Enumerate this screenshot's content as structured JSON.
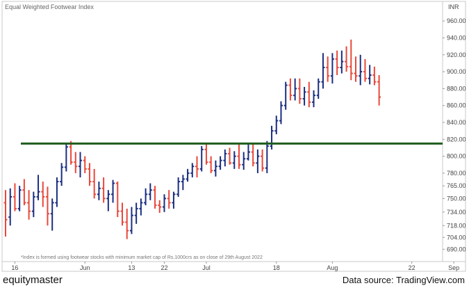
{
  "chart_data": {
    "type": "ohlc",
    "title": "Equal Weighted Footwear Index",
    "y_unit": "INR",
    "ylim": [
      682,
      970
    ],
    "y_ticks": [
      "960.00",
      "940.00",
      "920.00",
      "900.00",
      "880.00",
      "860.00",
      "840.00",
      "820.00",
      "800.00",
      "780.00",
      "765.00",
      "750.00",
      "734.00",
      "718.00",
      "704.00",
      "690.00"
    ],
    "x_ticks": [
      {
        "label": "16",
        "index": 2
      },
      {
        "label": "Jun",
        "index": 17
      },
      {
        "label": "13",
        "index": 27
      },
      {
        "label": "22",
        "index": 34
      },
      {
        "label": "Jul",
        "index": 43
      },
      {
        "label": "18",
        "index": 58
      },
      {
        "label": "Aug",
        "index": 70
      },
      {
        "label": "22",
        "index": 87
      },
      {
        "label": "Sep",
        "index": 96
      }
    ],
    "horizontal_line": {
      "value": 815,
      "color": "#1f5c1f"
    },
    "up_color": "#1a2e80",
    "down_color": "#e8483a",
    "note": "*Index is formed using footwear stocks with minimum market cap of Rs.1000crs as on close of 29th August 2022",
    "bars": [
      {
        "o": 745,
        "h": 760,
        "l": 705,
        "c": 725
      },
      {
        "o": 728,
        "h": 762,
        "l": 718,
        "c": 752
      },
      {
        "o": 752,
        "h": 768,
        "l": 735,
        "c": 738
      },
      {
        "o": 738,
        "h": 765,
        "l": 735,
        "c": 760
      },
      {
        "o": 760,
        "h": 773,
        "l": 742,
        "c": 745
      },
      {
        "o": 745,
        "h": 760,
        "l": 725,
        "c": 735
      },
      {
        "o": 735,
        "h": 758,
        "l": 728,
        "c": 752
      },
      {
        "o": 752,
        "h": 778,
        "l": 748,
        "c": 758
      },
      {
        "o": 758,
        "h": 770,
        "l": 740,
        "c": 752
      },
      {
        "o": 752,
        "h": 764,
        "l": 718,
        "c": 732
      },
      {
        "o": 732,
        "h": 750,
        "l": 712,
        "c": 745
      },
      {
        "o": 745,
        "h": 775,
        "l": 740,
        "c": 770
      },
      {
        "o": 770,
        "h": 792,
        "l": 765,
        "c": 787
      },
      {
        "o": 787,
        "h": 816,
        "l": 782,
        "c": 811
      },
      {
        "o": 811,
        "h": 818,
        "l": 790,
        "c": 793
      },
      {
        "o": 793,
        "h": 805,
        "l": 780,
        "c": 788
      },
      {
        "o": 788,
        "h": 805,
        "l": 775,
        "c": 795
      },
      {
        "o": 795,
        "h": 800,
        "l": 780,
        "c": 785
      },
      {
        "o": 785,
        "h": 792,
        "l": 765,
        "c": 770
      },
      {
        "o": 770,
        "h": 785,
        "l": 750,
        "c": 755
      },
      {
        "o": 755,
        "h": 770,
        "l": 748,
        "c": 762
      },
      {
        "o": 762,
        "h": 775,
        "l": 745,
        "c": 750
      },
      {
        "o": 750,
        "h": 760,
        "l": 735,
        "c": 755
      },
      {
        "o": 755,
        "h": 772,
        "l": 745,
        "c": 768
      },
      {
        "o": 768,
        "h": 770,
        "l": 728,
        "c": 735
      },
      {
        "o": 735,
        "h": 745,
        "l": 718,
        "c": 722
      },
      {
        "o": 722,
        "h": 738,
        "l": 702,
        "c": 712
      },
      {
        "o": 712,
        "h": 740,
        "l": 708,
        "c": 730
      },
      {
        "o": 730,
        "h": 745,
        "l": 720,
        "c": 738
      },
      {
        "o": 738,
        "h": 750,
        "l": 730,
        "c": 745
      },
      {
        "o": 745,
        "h": 762,
        "l": 742,
        "c": 755
      },
      {
        "o": 755,
        "h": 768,
        "l": 748,
        "c": 760
      },
      {
        "o": 760,
        "h": 765,
        "l": 738,
        "c": 742
      },
      {
        "o": 742,
        "h": 748,
        "l": 733,
        "c": 740
      },
      {
        "o": 740,
        "h": 755,
        "l": 734,
        "c": 750
      },
      {
        "o": 750,
        "h": 760,
        "l": 738,
        "c": 745
      },
      {
        "o": 745,
        "h": 758,
        "l": 738,
        "c": 755
      },
      {
        "o": 755,
        "h": 775,
        "l": 752,
        "c": 770
      },
      {
        "o": 770,
        "h": 778,
        "l": 760,
        "c": 773
      },
      {
        "o": 773,
        "h": 785,
        "l": 770,
        "c": 780
      },
      {
        "o": 780,
        "h": 792,
        "l": 775,
        "c": 788
      },
      {
        "o": 788,
        "h": 800,
        "l": 775,
        "c": 785
      },
      {
        "o": 785,
        "h": 812,
        "l": 782,
        "c": 808
      },
      {
        "o": 808,
        "h": 814,
        "l": 790,
        "c": 793
      },
      {
        "o": 793,
        "h": 800,
        "l": 780,
        "c": 783
      },
      {
        "o": 783,
        "h": 795,
        "l": 776,
        "c": 788
      },
      {
        "o": 788,
        "h": 800,
        "l": 784,
        "c": 795
      },
      {
        "o": 795,
        "h": 808,
        "l": 788,
        "c": 803
      },
      {
        "o": 803,
        "h": 810,
        "l": 790,
        "c": 792
      },
      {
        "o": 792,
        "h": 806,
        "l": 785,
        "c": 800
      },
      {
        "o": 800,
        "h": 815,
        "l": 785,
        "c": 790
      },
      {
        "o": 790,
        "h": 805,
        "l": 784,
        "c": 797
      },
      {
        "o": 797,
        "h": 815,
        "l": 795,
        "c": 805
      },
      {
        "o": 805,
        "h": 815,
        "l": 788,
        "c": 792
      },
      {
        "o": 792,
        "h": 808,
        "l": 780,
        "c": 800
      },
      {
        "o": 800,
        "h": 808,
        "l": 782,
        "c": 786
      },
      {
        "o": 786,
        "h": 818,
        "l": 780,
        "c": 812
      },
      {
        "o": 812,
        "h": 836,
        "l": 808,
        "c": 830
      },
      {
        "o": 830,
        "h": 848,
        "l": 826,
        "c": 842
      },
      {
        "o": 842,
        "h": 865,
        "l": 838,
        "c": 860
      },
      {
        "o": 860,
        "h": 888,
        "l": 855,
        "c": 884
      },
      {
        "o": 884,
        "h": 892,
        "l": 866,
        "c": 872
      },
      {
        "o": 872,
        "h": 892,
        "l": 866,
        "c": 880
      },
      {
        "o": 880,
        "h": 892,
        "l": 862,
        "c": 868
      },
      {
        "o": 868,
        "h": 882,
        "l": 860,
        "c": 876
      },
      {
        "o": 876,
        "h": 888,
        "l": 858,
        "c": 864
      },
      {
        "o": 864,
        "h": 878,
        "l": 858,
        "c": 872
      },
      {
        "o": 872,
        "h": 892,
        "l": 868,
        "c": 888
      },
      {
        "o": 888,
        "h": 922,
        "l": 880,
        "c": 905
      },
      {
        "o": 905,
        "h": 918,
        "l": 888,
        "c": 895
      },
      {
        "o": 895,
        "h": 922,
        "l": 886,
        "c": 915
      },
      {
        "o": 915,
        "h": 925,
        "l": 896,
        "c": 905
      },
      {
        "o": 905,
        "h": 925,
        "l": 898,
        "c": 912
      },
      {
        "o": 912,
        "h": 930,
        "l": 900,
        "c": 906
      },
      {
        "o": 906,
        "h": 938,
        "l": 890,
        "c": 898
      },
      {
        "o": 898,
        "h": 918,
        "l": 888,
        "c": 895
      },
      {
        "o": 895,
        "h": 920,
        "l": 884,
        "c": 900
      },
      {
        "o": 900,
        "h": 915,
        "l": 888,
        "c": 892
      },
      {
        "o": 892,
        "h": 908,
        "l": 885,
        "c": 896
      },
      {
        "o": 896,
        "h": 906,
        "l": 884,
        "c": 888
      },
      {
        "o": 888,
        "h": 896,
        "l": 860,
        "c": 870
      }
    ]
  },
  "footer": {
    "brand": "equitymaster",
    "source": "Data source: TradingView.com"
  }
}
